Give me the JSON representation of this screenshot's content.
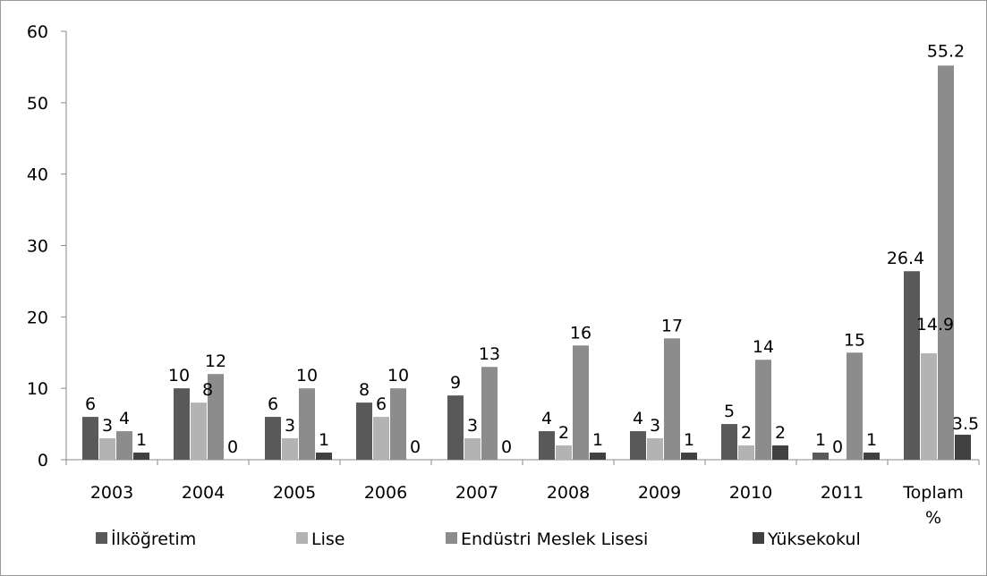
{
  "chart_data": {
    "type": "bar",
    "categories": [
      "2003",
      "2004",
      "2005",
      "2006",
      "2007",
      "2008",
      "2009",
      "2010",
      "2011",
      "Toplam %"
    ],
    "series": [
      {
        "name": "İlköğretim",
        "values": [
          6,
          10,
          6,
          8,
          9,
          4,
          4,
          5,
          1,
          26.4
        ],
        "color": "#595959"
      },
      {
        "name": "Lise",
        "values": [
          3,
          8,
          3,
          6,
          3,
          2,
          3,
          2,
          0,
          14.9
        ],
        "color": "#b3b3b3"
      },
      {
        "name": "Endüstri Meslek Lisesi",
        "values": [
          4,
          12,
          10,
          10,
          13,
          16,
          17,
          14,
          15,
          55.2
        ],
        "color": "#8c8c8c"
      },
      {
        "name": "Yüksekokul",
        "values": [
          1,
          0,
          1,
          0,
          0,
          1,
          1,
          2,
          1,
          3.5
        ],
        "color": "#404040"
      }
    ],
    "ylim": [
      0,
      60
    ],
    "yticks": [
      0,
      10,
      20,
      30,
      40,
      50,
      60
    ],
    "xlabel": "",
    "ylabel": "",
    "grid": false,
    "legend_position": "bottom",
    "data_labels": true
  }
}
